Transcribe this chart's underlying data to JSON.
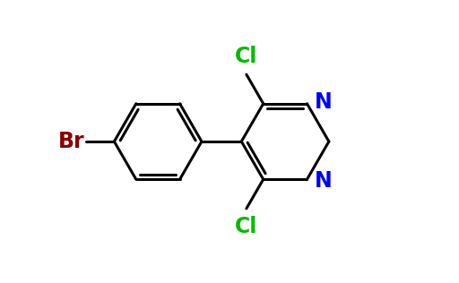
{
  "background_color": "#ffffff",
  "bond_color": "#000000",
  "atoms": {
    "Br": {
      "color": "#8B0000",
      "fontsize": 17
    },
    "Cl_top": {
      "color": "#00BB00",
      "fontsize": 17
    },
    "Cl_bot": {
      "color": "#00BB00",
      "fontsize": 17
    },
    "N_top": {
      "color": "#0000FF",
      "fontsize": 17
    },
    "N_bot": {
      "color": "#0000FF",
      "fontsize": 17
    }
  },
  "figsize": [
    5.12,
    3.16
  ],
  "dpi": 100
}
